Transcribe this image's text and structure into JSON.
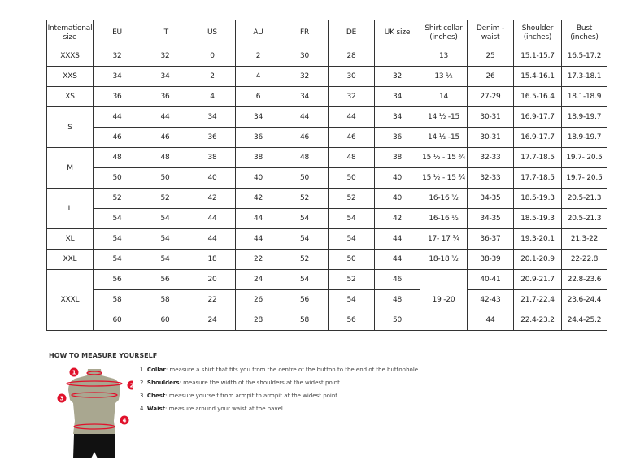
{
  "table": {
    "headers": [
      "International size",
      "EU",
      "IT",
      "US",
      "AU",
      "FR",
      "DE",
      "UK size",
      "Shirt collar (inches)",
      "Denim - waist",
      "Shoulder (inches)",
      "Bust (inches)"
    ],
    "rows": [
      [
        {
          "v": "XXXS"
        },
        {
          "v": "32"
        },
        {
          "v": "32"
        },
        {
          "v": "0"
        },
        {
          "v": "2"
        },
        {
          "v": "30"
        },
        {
          "v": "28"
        },
        {
          "v": ""
        },
        {
          "v": "13"
        },
        {
          "v": "25"
        },
        {
          "v": "15.1-15.7"
        },
        {
          "v": "16.5-17.2"
        }
      ],
      [
        {
          "v": "XXS"
        },
        {
          "v": "34"
        },
        {
          "v": "34"
        },
        {
          "v": "2"
        },
        {
          "v": "4"
        },
        {
          "v": "32"
        },
        {
          "v": "30"
        },
        {
          "v": "32"
        },
        {
          "v": "13 ½"
        },
        {
          "v": "26"
        },
        {
          "v": "15.4-16.1"
        },
        {
          "v": "17.3-18.1"
        }
      ],
      [
        {
          "v": "XS"
        },
        {
          "v": "36"
        },
        {
          "v": "36"
        },
        {
          "v": "4"
        },
        {
          "v": "6"
        },
        {
          "v": "34"
        },
        {
          "v": "32"
        },
        {
          "v": "34"
        },
        {
          "v": "14"
        },
        {
          "v": "27-29"
        },
        {
          "v": "16.5-16.4"
        },
        {
          "v": "18.1-18.9"
        }
      ],
      [
        {
          "v": "S",
          "rs": 2
        },
        {
          "v": "44"
        },
        {
          "v": "44"
        },
        {
          "v": "34"
        },
        {
          "v": "34"
        },
        {
          "v": "44"
        },
        {
          "v": "44"
        },
        {
          "v": "34"
        },
        {
          "v": "14 ½ -15"
        },
        {
          "v": "30-31"
        },
        {
          "v": "16.9-17.7"
        },
        {
          "v": "18.9-19.7"
        }
      ],
      [
        {
          "v": "46"
        },
        {
          "v": "46"
        },
        {
          "v": "36"
        },
        {
          "v": "36"
        },
        {
          "v": "46"
        },
        {
          "v": "46"
        },
        {
          "v": "36"
        },
        {
          "v": "14 ½ -15"
        },
        {
          "v": "30-31"
        },
        {
          "v": "16.9-17.7"
        },
        {
          "v": "18.9-19.7"
        }
      ],
      [
        {
          "v": "M",
          "rs": 2
        },
        {
          "v": "48"
        },
        {
          "v": "48"
        },
        {
          "v": "38"
        },
        {
          "v": "38"
        },
        {
          "v": "48"
        },
        {
          "v": "48"
        },
        {
          "v": "38"
        },
        {
          "v": "15 ½ - 15 ¾"
        },
        {
          "v": "32-33"
        },
        {
          "v": "17.7-18.5"
        },
        {
          "v": "19.7- 20.5"
        }
      ],
      [
        {
          "v": "50"
        },
        {
          "v": "50"
        },
        {
          "v": "40"
        },
        {
          "v": "40"
        },
        {
          "v": "50"
        },
        {
          "v": "50"
        },
        {
          "v": "40"
        },
        {
          "v": "15 ½ - 15 ¾"
        },
        {
          "v": "32-33"
        },
        {
          "v": "17.7-18.5"
        },
        {
          "v": "19.7- 20.5"
        }
      ],
      [
        {
          "v": "L",
          "rs": 2
        },
        {
          "v": "52"
        },
        {
          "v": "52"
        },
        {
          "v": "42"
        },
        {
          "v": "42"
        },
        {
          "v": "52"
        },
        {
          "v": "52"
        },
        {
          "v": "40"
        },
        {
          "v": "16-16 ½"
        },
        {
          "v": "34-35"
        },
        {
          "v": "18.5-19.3"
        },
        {
          "v": "20.5-21.3"
        }
      ],
      [
        {
          "v": "54"
        },
        {
          "v": "54"
        },
        {
          "v": "44"
        },
        {
          "v": "44"
        },
        {
          "v": "54"
        },
        {
          "v": "54"
        },
        {
          "v": "42"
        },
        {
          "v": "16-16 ½"
        },
        {
          "v": "34-35"
        },
        {
          "v": "18.5-19.3"
        },
        {
          "v": "20.5-21.3"
        }
      ],
      [
        {
          "v": "XL"
        },
        {
          "v": "54"
        },
        {
          "v": "54"
        },
        {
          "v": "44"
        },
        {
          "v": "44"
        },
        {
          "v": "54"
        },
        {
          "v": "54"
        },
        {
          "v": "44"
        },
        {
          "v": "17- 17 ¾"
        },
        {
          "v": "36-37"
        },
        {
          "v": "19.3-20.1"
        },
        {
          "v": "21.3-22"
        }
      ],
      [
        {
          "v": "XXL"
        },
        {
          "v": "54"
        },
        {
          "v": "54"
        },
        {
          "v": "18"
        },
        {
          "v": "22"
        },
        {
          "v": "52"
        },
        {
          "v": "50"
        },
        {
          "v": "44"
        },
        {
          "v": "18-18 ½"
        },
        {
          "v": "38-39"
        },
        {
          "v": "20.1-20.9"
        },
        {
          "v": "22-22.8"
        }
      ],
      [
        {
          "v": "XXXL",
          "rs": 3
        },
        {
          "v": "56"
        },
        {
          "v": "56"
        },
        {
          "v": "20"
        },
        {
          "v": "24"
        },
        {
          "v": "54"
        },
        {
          "v": "52"
        },
        {
          "v": "46"
        },
        {
          "v": "19 -20",
          "rs": 3
        },
        {
          "v": "40-41"
        },
        {
          "v": "20.9-21.7"
        },
        {
          "v": "22.8-23.6"
        }
      ],
      [
        {
          "v": "58"
        },
        {
          "v": "58"
        },
        {
          "v": "22"
        },
        {
          "v": "26"
        },
        {
          "v": "56"
        },
        {
          "v": "54"
        },
        {
          "v": "48"
        },
        {
          "v": "42-43"
        },
        {
          "v": "21.7-22.4"
        },
        {
          "v": "23.6-24.4"
        }
      ],
      [
        {
          "v": "60"
        },
        {
          "v": "60"
        },
        {
          "v": "24"
        },
        {
          "v": "28"
        },
        {
          "v": "58"
        },
        {
          "v": "56"
        },
        {
          "v": "50"
        },
        {
          "v": "44"
        },
        {
          "v": "22.4-23.2"
        },
        {
          "v": "24.4-25.2"
        }
      ]
    ]
  },
  "guide": {
    "title": "HOW TO MEASURE YOURSELF",
    "steps": [
      {
        "num": "1.",
        "term": "Collar",
        "text": ": measure a shirt that fits you from the centre of the button to the end of the buttonhole"
      },
      {
        "num": "2.",
        "term": "Shoulders",
        "text": ": measure the width of the shoulders at the widest point"
      },
      {
        "num": "3.",
        "term": "Chest",
        "text": ": measure yourself from armpit to armpit at the widest point"
      },
      {
        "num": "4.",
        "term": "Waist",
        "text": ": measure around your waist at the navel"
      }
    ],
    "markers": [
      "1",
      "2",
      "3",
      "4"
    ],
    "colors": {
      "marker": "#e0112b",
      "body": "#a9a790",
      "shorts": "#111111"
    }
  }
}
